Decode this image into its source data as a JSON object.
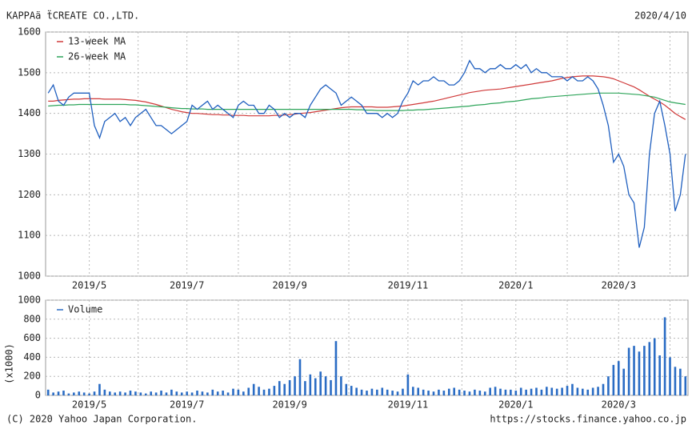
{
  "header": {
    "title": "KAPPAä ẗCREATE CO.,LTD.",
    "date": "2020/4/10"
  },
  "footer": {
    "copyright": "(C) 2020 Yahoo Japan Corporation.",
    "url": "https://stocks.finance.yahoo.co.jp"
  },
  "chart_data": [
    {
      "type": "line",
      "categories": [
        null,
        null,
        null,
        null,
        null,
        null,
        null,
        null,
        "2019/5",
        null,
        null,
        null,
        null,
        null,
        null,
        null,
        null,
        null,
        null,
        null,
        null,
        null,
        null,
        null,
        null,
        null,
        null,
        "2019/7",
        null,
        null,
        null,
        null,
        null,
        null,
        null,
        null,
        null,
        null,
        null,
        null,
        null,
        null,
        null,
        null,
        null,
        null,
        null,
        "2019/9",
        null,
        null,
        null,
        null,
        null,
        null,
        null,
        null,
        null,
        null,
        null,
        null,
        null,
        null,
        null,
        null,
        null,
        null,
        null,
        null,
        null,
        null,
        "2019/11",
        null,
        null,
        null,
        null,
        null,
        null,
        null,
        null,
        null,
        null,
        null,
        null,
        null,
        null,
        null,
        null,
        null,
        null,
        null,
        null,
        "2020/1",
        null,
        null,
        null,
        null,
        null,
        null,
        null,
        null,
        null,
        null,
        null,
        null,
        null,
        null,
        null,
        null,
        null,
        null,
        null,
        "2020/3",
        null,
        null,
        null,
        null,
        null,
        null,
        null,
        null,
        null,
        null,
        null,
        null,
        null
      ],
      "series": [
        {
          "name": "13-week MA",
          "color": "#d03a3a",
          "values": [
            1430,
            1430,
            1432,
            1433,
            1434,
            1435,
            1435,
            1436,
            1436,
            1436,
            1436,
            1435,
            1435,
            1435,
            1435,
            1434,
            1433,
            1432,
            1430,
            1428,
            1425,
            1422,
            1418,
            1414,
            1410,
            1407,
            1404,
            1402,
            1400,
            1400,
            1399,
            1398,
            1397,
            1397,
            1396,
            1396,
            1395,
            1395,
            1395,
            1394,
            1394,
            1394,
            1394,
            1394,
            1395,
            1395,
            1396,
            1397,
            1398,
            1400,
            1401,
            1402,
            1404,
            1406,
            1408,
            1410,
            1412,
            1414,
            1415,
            1416,
            1416,
            1416,
            1416,
            1416,
            1415,
            1415,
            1415,
            1416,
            1417,
            1418,
            1420,
            1422,
            1424,
            1426,
            1428,
            1430,
            1433,
            1436,
            1439,
            1442,
            1445,
            1448,
            1451,
            1453,
            1455,
            1457,
            1458,
            1459,
            1460,
            1462,
            1464,
            1466,
            1468,
            1470,
            1472,
            1474,
            1476,
            1478,
            1480,
            1483,
            1486,
            1488,
            1490,
            1491,
            1492,
            1492,
            1492,
            1491,
            1490,
            1488,
            1485,
            1480,
            1475,
            1470,
            1465,
            1458,
            1450,
            1442,
            1435,
            1428,
            1420,
            1410,
            1400,
            1392,
            1385
          ]
        },
        {
          "name": "26-week MA",
          "color": "#2ea55a",
          "values": [
            1418,
            1419,
            1420,
            1420,
            1421,
            1421,
            1422,
            1422,
            1422,
            1422,
            1422,
            1422,
            1422,
            1422,
            1422,
            1422,
            1421,
            1421,
            1420,
            1419,
            1418,
            1417,
            1416,
            1415,
            1414,
            1413,
            1412,
            1412,
            1411,
            1411,
            1411,
            1410,
            1410,
            1410,
            1410,
            1410,
            1410,
            1410,
            1410,
            1410,
            1410,
            1410,
            1410,
            1410,
            1410,
            1410,
            1410,
            1410,
            1410,
            1410,
            1410,
            1410,
            1410,
            1410,
            1410,
            1410,
            1410,
            1410,
            1410,
            1410,
            1409,
            1409,
            1408,
            1408,
            1407,
            1407,
            1407,
            1407,
            1407,
            1407,
            1408,
            1408,
            1409,
            1409,
            1410,
            1411,
            1412,
            1413,
            1414,
            1415,
            1416,
            1417,
            1418,
            1420,
            1421,
            1422,
            1424,
            1425,
            1426,
            1428,
            1429,
            1430,
            1432,
            1434,
            1436,
            1437,
            1438,
            1440,
            1441,
            1442,
            1443,
            1444,
            1445,
            1446,
            1447,
            1448,
            1449,
            1450,
            1450,
            1450,
            1450,
            1450,
            1449,
            1448,
            1447,
            1446,
            1444,
            1442,
            1440,
            1436,
            1432,
            1428,
            1426,
            1424,
            1422
          ]
        },
        {
          "color": "#1f5fbf",
          "values": [
            1450,
            1470,
            1430,
            1420,
            1440,
            1450,
            1450,
            1450,
            1450,
            1370,
            1340,
            1380,
            1390,
            1400,
            1380,
            1390,
            1370,
            1390,
            1400,
            1410,
            1390,
            1370,
            1370,
            1360,
            1350,
            1360,
            1370,
            1380,
            1420,
            1410,
            1420,
            1430,
            1410,
            1420,
            1410,
            1400,
            1390,
            1420,
            1430,
            1420,
            1420,
            1400,
            1400,
            1420,
            1410,
            1390,
            1400,
            1390,
            1400,
            1400,
            1390,
            1420,
            1440,
            1460,
            1470,
            1460,
            1450,
            1420,
            1430,
            1440,
            1430,
            1420,
            1400,
            1400,
            1400,
            1390,
            1400,
            1390,
            1400,
            1430,
            1450,
            1480,
            1470,
            1480,
            1480,
            1490,
            1480,
            1480,
            1470,
            1470,
            1480,
            1500,
            1530,
            1510,
            1510,
            1500,
            1510,
            1510,
            1520,
            1510,
            1510,
            1520,
            1510,
            1520,
            1500,
            1510,
            1500,
            1500,
            1490,
            1490,
            1490,
            1480,
            1490,
            1480,
            1480,
            1490,
            1480,
            1460,
            1420,
            1370,
            1280,
            1300,
            1270,
            1200,
            1180,
            1070,
            1120,
            1300,
            1400,
            1430,
            1370,
            1300,
            1160,
            1200,
            1300
          ]
        }
      ],
      "ylim": [
        1000,
        1600
      ],
      "yticks": [
        1000,
        1100,
        1200,
        1300,
        1400,
        1500,
        1600
      ],
      "grid": true,
      "legend": "top-left"
    },
    {
      "type": "bar",
      "categories": [
        null,
        null,
        null,
        null,
        null,
        null,
        null,
        null,
        "2019/5",
        null,
        null,
        null,
        null,
        null,
        null,
        null,
        null,
        null,
        null,
        null,
        null,
        null,
        null,
        null,
        null,
        null,
        null,
        "2019/7",
        null,
        null,
        null,
        null,
        null,
        null,
        null,
        null,
        null,
        null,
        null,
        null,
        null,
        null,
        null,
        null,
        null,
        null,
        null,
        "2019/9",
        null,
        null,
        null,
        null,
        null,
        null,
        null,
        null,
        null,
        null,
        null,
        null,
        null,
        null,
        null,
        null,
        null,
        null,
        null,
        null,
        null,
        null,
        "2019/11",
        null,
        null,
        null,
        null,
        null,
        null,
        null,
        null,
        null,
        null,
        null,
        null,
        null,
        null,
        null,
        null,
        null,
        null,
        null,
        null,
        "2020/1",
        null,
        null,
        null,
        null,
        null,
        null,
        null,
        null,
        null,
        null,
        null,
        null,
        null,
        null,
        null,
        null,
        null,
        null,
        null,
        "2020/3",
        null,
        null,
        null,
        null,
        null,
        null,
        null,
        null,
        null,
        null,
        null,
        null,
        null
      ],
      "series": [
        {
          "name": "Volume",
          "color": "#2a6cc4",
          "values": [
            60,
            30,
            40,
            50,
            20,
            30,
            40,
            30,
            20,
            40,
            120,
            60,
            40,
            30,
            40,
            30,
            50,
            40,
            30,
            20,
            40,
            30,
            50,
            30,
            60,
            40,
            30,
            40,
            30,
            50,
            40,
            30,
            60,
            40,
            50,
            30,
            70,
            60,
            40,
            80,
            120,
            90,
            60,
            70,
            100,
            150,
            120,
            160,
            200,
            380,
            150,
            220,
            180,
            250,
            200,
            160,
            570,
            200,
            120,
            100,
            80,
            60,
            50,
            70,
            60,
            80,
            60,
            50,
            40,
            70,
            220,
            90,
            80,
            60,
            50,
            40,
            60,
            50,
            70,
            80,
            60,
            50,
            40,
            60,
            50,
            40,
            80,
            90,
            70,
            60,
            60,
            50,
            80,
            60,
            70,
            80,
            60,
            90,
            80,
            70,
            80,
            100,
            120,
            80,
            70,
            60,
            80,
            90,
            120,
            200,
            320,
            360,
            280,
            500,
            520,
            460,
            520,
            560,
            600,
            420,
            820,
            400,
            300,
            280,
            200
          ]
        }
      ],
      "ylabel": "(x1000)",
      "ylim": [
        0,
        1000
      ],
      "yticks": [
        0,
        200,
        400,
        600,
        800,
        1000
      ],
      "grid": true,
      "legend": "top-left"
    }
  ]
}
